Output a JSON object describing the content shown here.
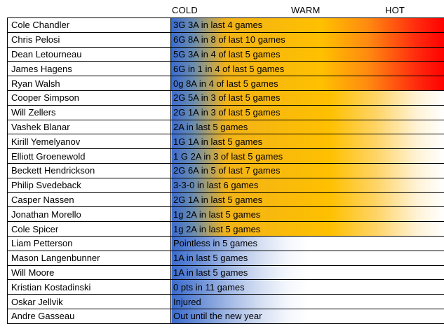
{
  "header": {
    "cold": "COLD",
    "warm": "WARM",
    "hot": "HOT"
  },
  "legend_colors": {
    "cold": "#3d6ccf",
    "warm": "#ffc000",
    "hot": "#ff0000"
  },
  "rows": [
    {
      "name": "Cole Chandler",
      "stat": "3G 3A in last 4 games",
      "heat": "hot"
    },
    {
      "name": "Chris Pelosi",
      "stat": "6G 8A in 8 of last 10 games",
      "heat": "hot"
    },
    {
      "name": "Dean Letourneau",
      "stat": "5G 3A in 4 of last  5 games",
      "heat": "hot"
    },
    {
      "name": "James Hagens",
      "stat": "6G in 1 in 4 of last 5 games",
      "heat": "hot"
    },
    {
      "name": "Ryan Walsh",
      "stat": "0g 8A in 4 of last 5 games",
      "heat": "hot"
    },
    {
      "name": "Cooper Simpson",
      "stat": "2G 5A in 3 of last 5 games",
      "heat": "warm"
    },
    {
      "name": "Will Zellers",
      "stat": "2G 1A in 3 of last 5 games",
      "heat": "warm"
    },
    {
      "name": "Vashek Blanar",
      "stat": "2A in last 5 games",
      "heat": "warm"
    },
    {
      "name": "Kirill Yemelyanov",
      "stat": "1G 1A in last 5 games",
      "heat": "warm"
    },
    {
      "name": "Elliott Groenewold",
      "stat": "1 G 2A in 3 of last 5 games",
      "heat": "warm"
    },
    {
      "name": "Beckett Hendrickson",
      "stat": "2G 6A in 5 of last 7 games",
      "heat": "warm"
    },
    {
      "name": "Philip Svedeback",
      "stat": "3-3-0 in last 6 games",
      "heat": "warm"
    },
    {
      "name": "Casper Nassen",
      "stat": "2G 1A in last 5 games",
      "heat": "warm"
    },
    {
      "name": "Jonathan Morello",
      "stat": "1g 2A in last 5 games",
      "heat": "warm"
    },
    {
      "name": "Cole Spicer",
      "stat": "1g 2A in last 5 games",
      "heat": "warm"
    },
    {
      "name": "Liam Petterson",
      "stat": "Pointless in 5 games",
      "heat": "cold"
    },
    {
      "name": "Mason Langenbunner",
      "stat": "1A in last 5 games",
      "heat": "cold"
    },
    {
      "name": "Will Moore",
      "stat": "1A in last 5 games",
      "heat": "cold"
    },
    {
      "name": "Kristian Kostadinski",
      "stat": "0 pts in 11 games",
      "heat": "cold"
    },
    {
      "name": "Oskar Jellvik",
      "stat": "Injured",
      "heat": "cold"
    },
    {
      "name": "Andre Gasseau",
      "stat": "Out until the new year",
      "heat": "cold"
    }
  ]
}
